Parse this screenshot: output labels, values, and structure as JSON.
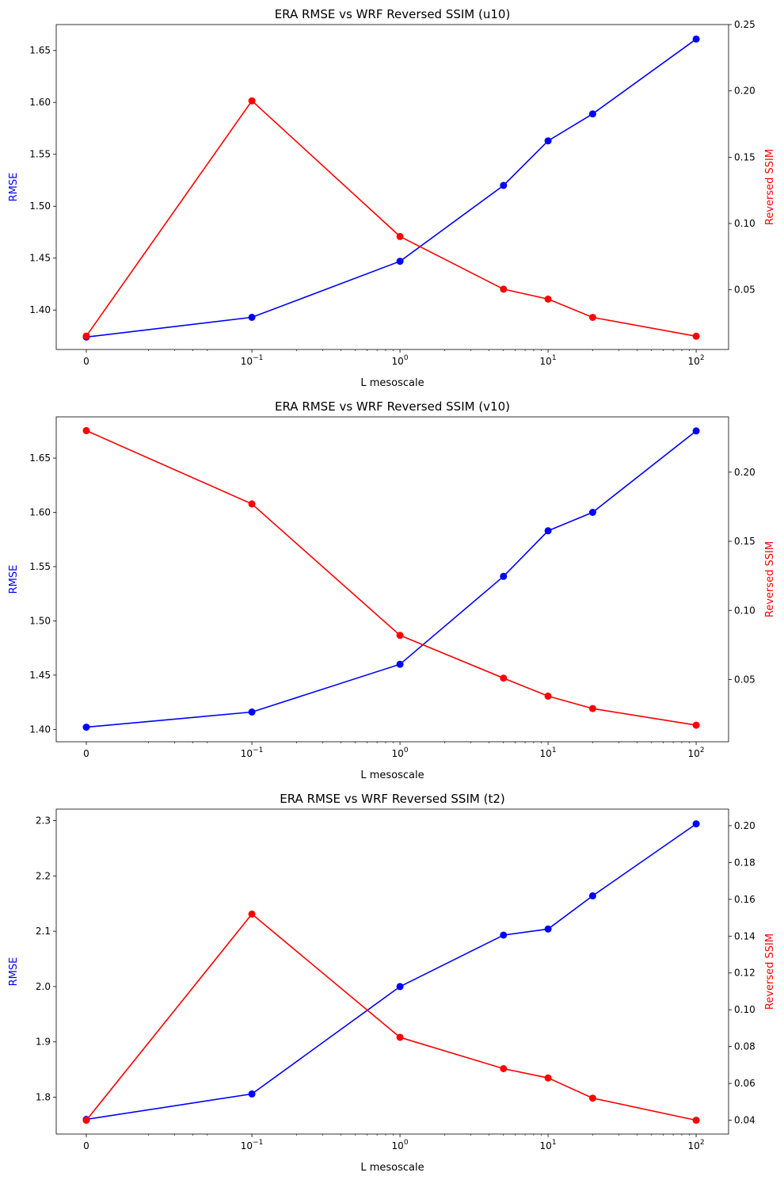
{
  "chart_data": [
    {
      "type": "line",
      "title": "ERA RMSE vs WRF Reversed SSIM (u10)",
      "xlabel": "L mesoscale",
      "ylabel_left": "RMSE",
      "ylabel_right": "Reversed SSIM",
      "xscale": "symlog",
      "x": [
        0,
        0.1,
        1,
        5,
        10,
        20,
        100
      ],
      "x_ticks": [
        {
          "value": 0,
          "base": "0",
          "exp": ""
        },
        {
          "value": 0.1,
          "base": "10",
          "exp": "−1"
        },
        {
          "value": 1,
          "base": "10",
          "exp": "0"
        },
        {
          "value": 10,
          "base": "10",
          "exp": "1"
        },
        {
          "value": 100,
          "base": "10",
          "exp": "2"
        }
      ],
      "left_ticks": [
        "1.40",
        "1.45",
        "1.50",
        "1.55",
        "1.60",
        "1.65"
      ],
      "right_ticks": [
        "0.05",
        "0.10",
        "0.15",
        "0.20",
        "0.25"
      ],
      "ylim_left": [
        1.362,
        1.675
      ],
      "ylim_right": [
        0.005,
        0.25
      ],
      "series": [
        {
          "axis": "left",
          "color": "#0000ff",
          "values": [
            1.374,
            1.393,
            1.447,
            1.52,
            1.563,
            1.589,
            1.661
          ]
        },
        {
          "axis": "right",
          "color": "#ff0000",
          "values": [
            0.0151,
            0.1925,
            0.0902,
            0.0505,
            0.043,
            0.0292,
            0.015
          ]
        }
      ]
    },
    {
      "type": "line",
      "title": "ERA RMSE vs WRF Reversed SSIM (v10)",
      "xlabel": "L mesoscale",
      "ylabel_left": "RMSE",
      "ylabel_right": "Reversed SSIM",
      "xscale": "symlog",
      "x": [
        0,
        0.1,
        1,
        5,
        10,
        20,
        100
      ],
      "x_ticks": [
        {
          "value": 0,
          "base": "0",
          "exp": ""
        },
        {
          "value": 0.1,
          "base": "10",
          "exp": "−1"
        },
        {
          "value": 1,
          "base": "10",
          "exp": "0"
        },
        {
          "value": 10,
          "base": "10",
          "exp": "1"
        },
        {
          "value": 100,
          "base": "10",
          "exp": "2"
        }
      ],
      "left_ticks": [
        "1.40",
        "1.45",
        "1.50",
        "1.55",
        "1.60",
        "1.65"
      ],
      "right_ticks": [
        "0.05",
        "0.10",
        "0.15",
        "0.20"
      ],
      "ylim_left": [
        1.3886,
        1.688
      ],
      "ylim_right": [
        0.005,
        0.24
      ],
      "series": [
        {
          "axis": "left",
          "color": "#0000ff",
          "values": [
            1.402,
            1.416,
            1.46,
            1.541,
            1.583,
            1.6,
            1.675
          ]
        },
        {
          "axis": "right",
          "color": "#ff0000",
          "values": [
            0.23,
            0.177,
            0.082,
            0.051,
            0.038,
            0.029,
            0.017
          ]
        }
      ]
    },
    {
      "type": "line",
      "title": "ERA RMSE vs WRF Reversed SSIM (t2)",
      "xlabel": "L mesoscale",
      "ylabel_left": "RMSE",
      "ylabel_right": "Reversed SSIM",
      "xscale": "symlog",
      "x": [
        0,
        0.1,
        1,
        5,
        10,
        20,
        100
      ],
      "x_ticks": [
        {
          "value": 0,
          "base": "0",
          "exp": ""
        },
        {
          "value": 0.1,
          "base": "10",
          "exp": "−1"
        },
        {
          "value": 1,
          "base": "10",
          "exp": "0"
        },
        {
          "value": 10,
          "base": "10",
          "exp": "1"
        },
        {
          "value": 100,
          "base": "10",
          "exp": "2"
        }
      ],
      "left_ticks": [
        "1.8",
        "1.9",
        "2.0",
        "2.1",
        "2.2",
        "2.3"
      ],
      "right_ticks": [
        "0.04",
        "0.06",
        "0.08",
        "0.10",
        "0.12",
        "0.14",
        "0.16",
        "0.18",
        "0.20"
      ],
      "ylim_left": [
        1.7335,
        2.3207
      ],
      "ylim_right": [
        0.0325,
        0.209
      ],
      "series": [
        {
          "axis": "left",
          "color": "#0000ff",
          "values": [
            1.76,
            1.806,
            2.0,
            2.093,
            2.104,
            2.164,
            2.294
          ]
        },
        {
          "axis": "right",
          "color": "#ff0000",
          "values": [
            0.04,
            0.152,
            0.085,
            0.068,
            0.063,
            0.052,
            0.04
          ]
        }
      ]
    }
  ]
}
